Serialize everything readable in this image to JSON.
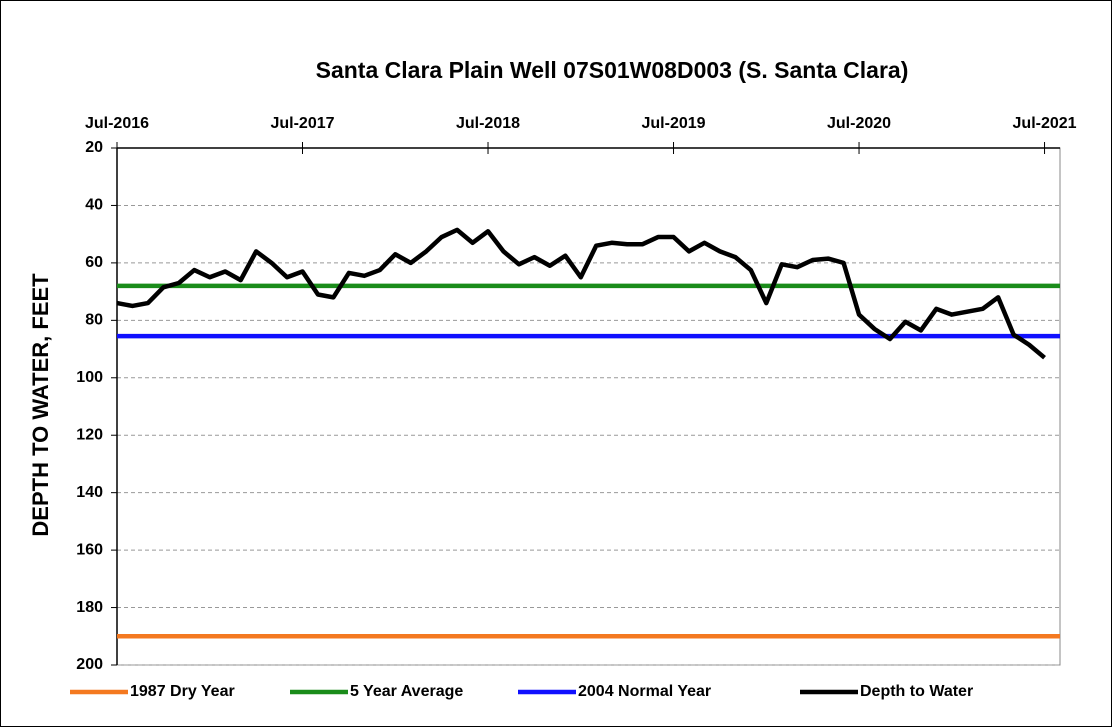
{
  "chart_data": {
    "type": "line",
    "title": "Santa Clara Plain Well 07S01W08D003   (S. Santa Clara)",
    "y_label": "DEPTH TO WATER, FEET",
    "ylim": [
      20,
      200
    ],
    "y_inverted": true,
    "yticks": [
      20,
      40,
      60,
      80,
      100,
      120,
      140,
      160,
      180,
      200
    ],
    "xlim": [
      "2016-07",
      "2021-08"
    ],
    "xticks": [
      {
        "value": "2016-07",
        "label": "Jul-2016"
      },
      {
        "value": "2017-07",
        "label": "Jul-2017"
      },
      {
        "value": "2018-07",
        "label": "Jul-2018"
      },
      {
        "value": "2019-07",
        "label": "Jul-2019"
      },
      {
        "value": "2020-07",
        "label": "Jul-2020"
      },
      {
        "value": "2021-07",
        "label": "Jul-2021"
      }
    ],
    "grid": true,
    "legend": "bottom",
    "series": [
      {
        "name": "1987 Dry Year",
        "color": "#f47920",
        "value": 190
      },
      {
        "name": "5 Year Average",
        "color": "#1a8c1a",
        "value": 68
      },
      {
        "name": "2004 Normal Year",
        "color": "#1010ff",
        "value": 85.5
      },
      {
        "name": "Depth to Water",
        "color": "#000000",
        "x": [
          "2016-07",
          "2016-08",
          "2016-09",
          "2016-10",
          "2016-11",
          "2016-12",
          "2017-01",
          "2017-02",
          "2017-03",
          "2017-04",
          "2017-05",
          "2017-06",
          "2017-07",
          "2017-08",
          "2017-09",
          "2017-10",
          "2017-11",
          "2017-12",
          "2018-01",
          "2018-02",
          "2018-03",
          "2018-04",
          "2018-05",
          "2018-06",
          "2018-07",
          "2018-08",
          "2018-09",
          "2018-10",
          "2018-11",
          "2018-12",
          "2019-01",
          "2019-02",
          "2019-03",
          "2019-04",
          "2019-05",
          "2019-06",
          "2019-07",
          "2019-08",
          "2019-09",
          "2019-10",
          "2019-11",
          "2019-12",
          "2020-01",
          "2020-02",
          "2020-03",
          "2020-04",
          "2020-05",
          "2020-06",
          "2020-07",
          "2020-08",
          "2020-09",
          "2020-10",
          "2020-11",
          "2020-12",
          "2021-01",
          "2021-02",
          "2021-03",
          "2021-04",
          "2021-05",
          "2021-06",
          "2021-07"
        ],
        "values": [
          74,
          75,
          74,
          68.5,
          67,
          62.5,
          65,
          63,
          66,
          56,
          60,
          65,
          63,
          71,
          72,
          63.5,
          64.5,
          62.5,
          57,
          60,
          56,
          51,
          48.5,
          53,
          49,
          56,
          60.5,
          58,
          61,
          57.5,
          65,
          54,
          53,
          53.5,
          53.5,
          51,
          51,
          56,
          53,
          56,
          58,
          62.5,
          74,
          60.5,
          61.5,
          59,
          58.5,
          60,
          78,
          83,
          86.5,
          80.5,
          83.5,
          76,
          78,
          77,
          76,
          72,
          85,
          88.5,
          93
        ]
      }
    ]
  }
}
